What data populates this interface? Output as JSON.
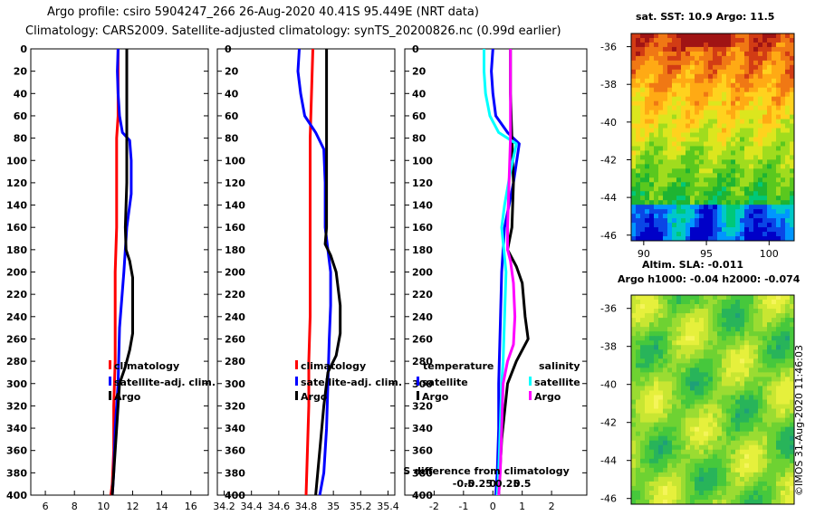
{
  "title_line1": "Argo profile: csiro 5904247_266 26-Aug-2020 40.41S 95.449E (NRT data)",
  "title_line2": "Climatology: CARS2009. Satellite-adjusted climatology: synTS_20200826.nc (0.99d earlier)",
  "sst_panel_title": "sat. SST: 10.9 Argo: 11.5",
  "sla_panel_title1": "Altim. SLA: -0.011",
  "sla_panel_title2": "Argo h1000: -0.04 h2000: -0.074",
  "timestamp": "©IMOS 31-Aug-2020 11:46:03",
  "colors": {
    "climatology": "#ff0000",
    "satellite": "#0000ff",
    "argo": "#000000",
    "sat_salinity": "#00ffff",
    "argo_salinity": "#ff00ff"
  },
  "chart_data": [
    {
      "type": "line",
      "name": "temperature-profile",
      "xlim": [
        5,
        17.2
      ],
      "ylim": [
        400,
        0
      ],
      "xticks": [
        6,
        8,
        10,
        12,
        14,
        16
      ],
      "yticks": [
        0,
        20,
        40,
        60,
        80,
        100,
        120,
        140,
        160,
        180,
        200,
        220,
        240,
        260,
        280,
        300,
        320,
        340,
        360,
        380,
        400
      ],
      "legend": [
        "climatology",
        "satellite-adj. clim.",
        "Argo"
      ],
      "series": [
        {
          "name": "climatology",
          "color": "#ff0000",
          "x": [
            11.0,
            11.0,
            10.9,
            10.9,
            10.9,
            10.8,
            10.8,
            10.8,
            10.7,
            10.7,
            10.6,
            10.5
          ],
          "y": [
            0,
            60,
            80,
            120,
            160,
            200,
            240,
            280,
            320,
            360,
            390,
            400
          ]
        },
        {
          "name": "satellite-adj. clim.",
          "color": "#0000ff",
          "x": [
            11.0,
            10.95,
            11.0,
            11.1,
            11.3,
            11.8,
            11.9,
            11.9,
            11.6,
            11.4,
            11.1,
            11.0,
            10.8,
            10.7,
            10.6
          ],
          "y": [
            0,
            20,
            40,
            60,
            75,
            82,
            100,
            130,
            160,
            200,
            250,
            300,
            340,
            380,
            400
          ]
        },
        {
          "name": "Argo",
          "color": "#000000",
          "x": [
            11.6,
            11.6,
            11.6,
            11.6,
            11.5,
            11.55,
            11.8,
            12.0,
            12.0,
            12.0,
            11.8,
            11.5,
            11.1,
            10.9,
            10.7,
            10.6
          ],
          "y": [
            0,
            40,
            80,
            120,
            160,
            180,
            190,
            205,
            230,
            255,
            270,
            285,
            300,
            340,
            380,
            400
          ]
        }
      ]
    },
    {
      "type": "line",
      "name": "salinity-profile",
      "xlim": [
        34.15,
        35.45
      ],
      "ylim": [
        400,
        0
      ],
      "xticks": [
        34.2,
        34.4,
        34.6,
        34.8,
        35,
        35.2,
        35.4
      ],
      "yticks": [
        0,
        20,
        40,
        60,
        80,
        100,
        120,
        140,
        160,
        180,
        200,
        220,
        240,
        260,
        280,
        300,
        320,
        340,
        360,
        380,
        400
      ],
      "legend": [
        "climatology",
        "satellite-adj. clim.",
        "Argo"
      ],
      "series": [
        {
          "name": "climatology",
          "color": "#ff0000",
          "x": [
            34.85,
            34.84,
            34.83,
            34.83,
            34.83,
            34.83,
            34.83,
            34.82,
            34.82,
            34.81,
            34.8
          ],
          "y": [
            0,
            40,
            80,
            120,
            160,
            200,
            240,
            280,
            320,
            360,
            400
          ]
        },
        {
          "name": "satellite-adj. clim.",
          "color": "#0000ff",
          "x": [
            34.75,
            34.74,
            34.76,
            34.79,
            34.87,
            34.93,
            34.94,
            34.94,
            34.96,
            34.98,
            34.98,
            34.97,
            34.96,
            34.95,
            34.93,
            34.9
          ],
          "y": [
            0,
            20,
            40,
            60,
            75,
            90,
            120,
            160,
            180,
            200,
            230,
            260,
            300,
            340,
            380,
            400
          ]
        },
        {
          "name": "Argo",
          "color": "#000000",
          "x": [
            34.95,
            34.95,
            34.95,
            34.95,
            34.95,
            34.94,
            34.98,
            35.02,
            35.05,
            35.05,
            35.02,
            34.96,
            34.93,
            34.9,
            34.87
          ],
          "y": [
            0,
            40,
            80,
            120,
            160,
            175,
            185,
            200,
            230,
            255,
            275,
            290,
            320,
            360,
            400
          ]
        }
      ]
    },
    {
      "type": "line",
      "name": "difference-from-climatology",
      "xlim": [
        -3,
        3.2
      ],
      "ylim": [
        400,
        0
      ],
      "xticks": [
        -2,
        -1,
        0,
        1,
        2
      ],
      "s_ticks": [
        -0.5,
        -0.25,
        0,
        0.25,
        0.5
      ],
      "yticks": [
        0,
        20,
        40,
        60,
        80,
        100,
        120,
        140,
        160,
        180,
        200,
        220,
        240,
        260,
        280,
        300,
        320,
        340,
        360,
        380,
        400
      ],
      "legend_groups": [
        "temperature",
        "salinity"
      ],
      "legend": [
        "satellite",
        "Argo",
        "satellite",
        "Argo"
      ],
      "s_axis_label": "S difference from climatology",
      "series": [
        {
          "name": "temperature satellite",
          "color": "#0000ff",
          "x": [
            0.0,
            -0.05,
            0.0,
            0.1,
            0.5,
            0.9,
            0.7,
            0.4,
            0.3,
            0.25,
            0.2,
            0.2,
            0.15,
            0.1
          ],
          "y": [
            0,
            20,
            40,
            60,
            75,
            85,
            120,
            160,
            200,
            250,
            300,
            340,
            380,
            400
          ]
        },
        {
          "name": "temperature Argo",
          "color": "#000000",
          "x": [
            0.6,
            0.6,
            0.65,
            0.7,
            0.65,
            0.5,
            0.8,
            1.0,
            1.1,
            1.2,
            0.8,
            0.5,
            0.3,
            0.2
          ],
          "y": [
            0,
            40,
            80,
            120,
            160,
            180,
            195,
            210,
            240,
            260,
            280,
            300,
            350,
            400
          ]
        },
        {
          "name": "salinity satellite",
          "color": "#00ffff",
          "x": [
            -0.3,
            -0.3,
            -0.25,
            -0.1,
            0.2,
            0.8,
            0.6,
            0.4,
            0.3,
            0.45,
            0.4,
            0.35,
            0.3,
            0.25,
            0.2,
            0.15
          ],
          "y": [
            0,
            20,
            40,
            60,
            75,
            85,
            110,
            140,
            160,
            200,
            240,
            280,
            300,
            340,
            380,
            400
          ]
        },
        {
          "name": "salinity Argo",
          "color": "#ff00ff",
          "x": [
            0.6,
            0.6,
            0.6,
            0.55,
            0.5,
            0.5,
            0.6,
            0.7,
            0.75,
            0.7,
            0.5,
            0.35,
            0.3,
            0.25,
            0.2
          ],
          "y": [
            0,
            40,
            80,
            120,
            160,
            180,
            190,
            210,
            240,
            265,
            280,
            300,
            340,
            380,
            400
          ]
        }
      ]
    },
    {
      "type": "heatmap",
      "name": "satellite-sst-map",
      "title": "sat. SST: 10.9 Argo: 11.5",
      "xlim": [
        89,
        102
      ],
      "ylim": [
        -46.3,
        -35.3
      ],
      "xticks": [
        90,
        95,
        100
      ],
      "yticks": [
        -36,
        -38,
        -40,
        -42,
        -44,
        -46
      ]
    },
    {
      "type": "heatmap",
      "name": "altimetry-sla-map",
      "title": "Altim. SLA: -0.011",
      "ylim": [
        -46.3,
        -35.3
      ],
      "yticks": [
        -36,
        -38,
        -40,
        -42,
        -44,
        -46
      ]
    }
  ]
}
